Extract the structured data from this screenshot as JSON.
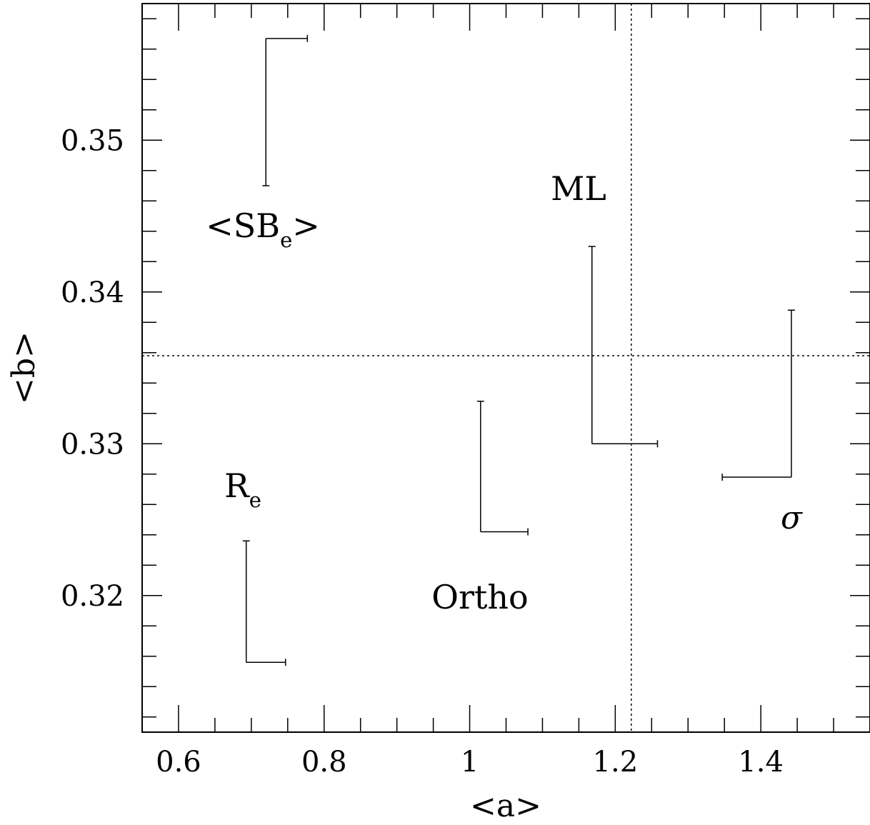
{
  "chart_data": {
    "type": "scatter",
    "xlabel": "<a>",
    "ylabel": "<b>",
    "xlim": [
      0.55,
      1.55
    ],
    "ylim": [
      0.311,
      0.359
    ],
    "x_ticks": [
      0.6,
      0.8,
      1,
      1.2,
      1.4
    ],
    "x_tick_labels": [
      "0.6",
      "0.8",
      "1",
      "1.2",
      "1.4"
    ],
    "y_ticks": [
      0.32,
      0.33,
      0.34,
      0.35
    ],
    "y_tick_labels": [
      "0.32",
      "0.33",
      "0.34",
      "0.35"
    ],
    "reference_lines": {
      "x": 1.222,
      "y": 0.3358
    },
    "points": [
      {
        "label": "<SBe>",
        "label_main": "<SB",
        "label_sub": "e",
        "label_tail": ">",
        "x": 0.72,
        "y": 0.3567,
        "x_error": [
          0,
          0.057
        ],
        "y_error": [
          0.0097,
          0
        ]
      },
      {
        "label": "ML",
        "label_main": "ML",
        "label_sub": "",
        "label_tail": "",
        "x": 1.168,
        "y": 0.33,
        "x_error": [
          0,
          0.09
        ],
        "y_error": [
          0,
          0.013
        ]
      },
      {
        "label": "σ",
        "label_main": "σ",
        "label_sub": "",
        "label_tail": "",
        "x": 1.442,
        "y": 0.3278,
        "x_error": [
          0.095,
          0
        ],
        "y_error": [
          0,
          0.011
        ]
      },
      {
        "label": "Ortho",
        "label_main": "Ortho",
        "label_sub": "",
        "label_tail": "",
        "x": 1.015,
        "y": 0.3242,
        "x_error": [
          0,
          0.065
        ],
        "y_error": [
          0,
          0.0086
        ]
      },
      {
        "label": "Re",
        "label_main": "R",
        "label_sub": "e",
        "label_tail": "",
        "x": 0.693,
        "y": 0.3156,
        "x_error": [
          0,
          0.054
        ],
        "y_error": [
          0,
          0.008
        ]
      }
    ]
  }
}
